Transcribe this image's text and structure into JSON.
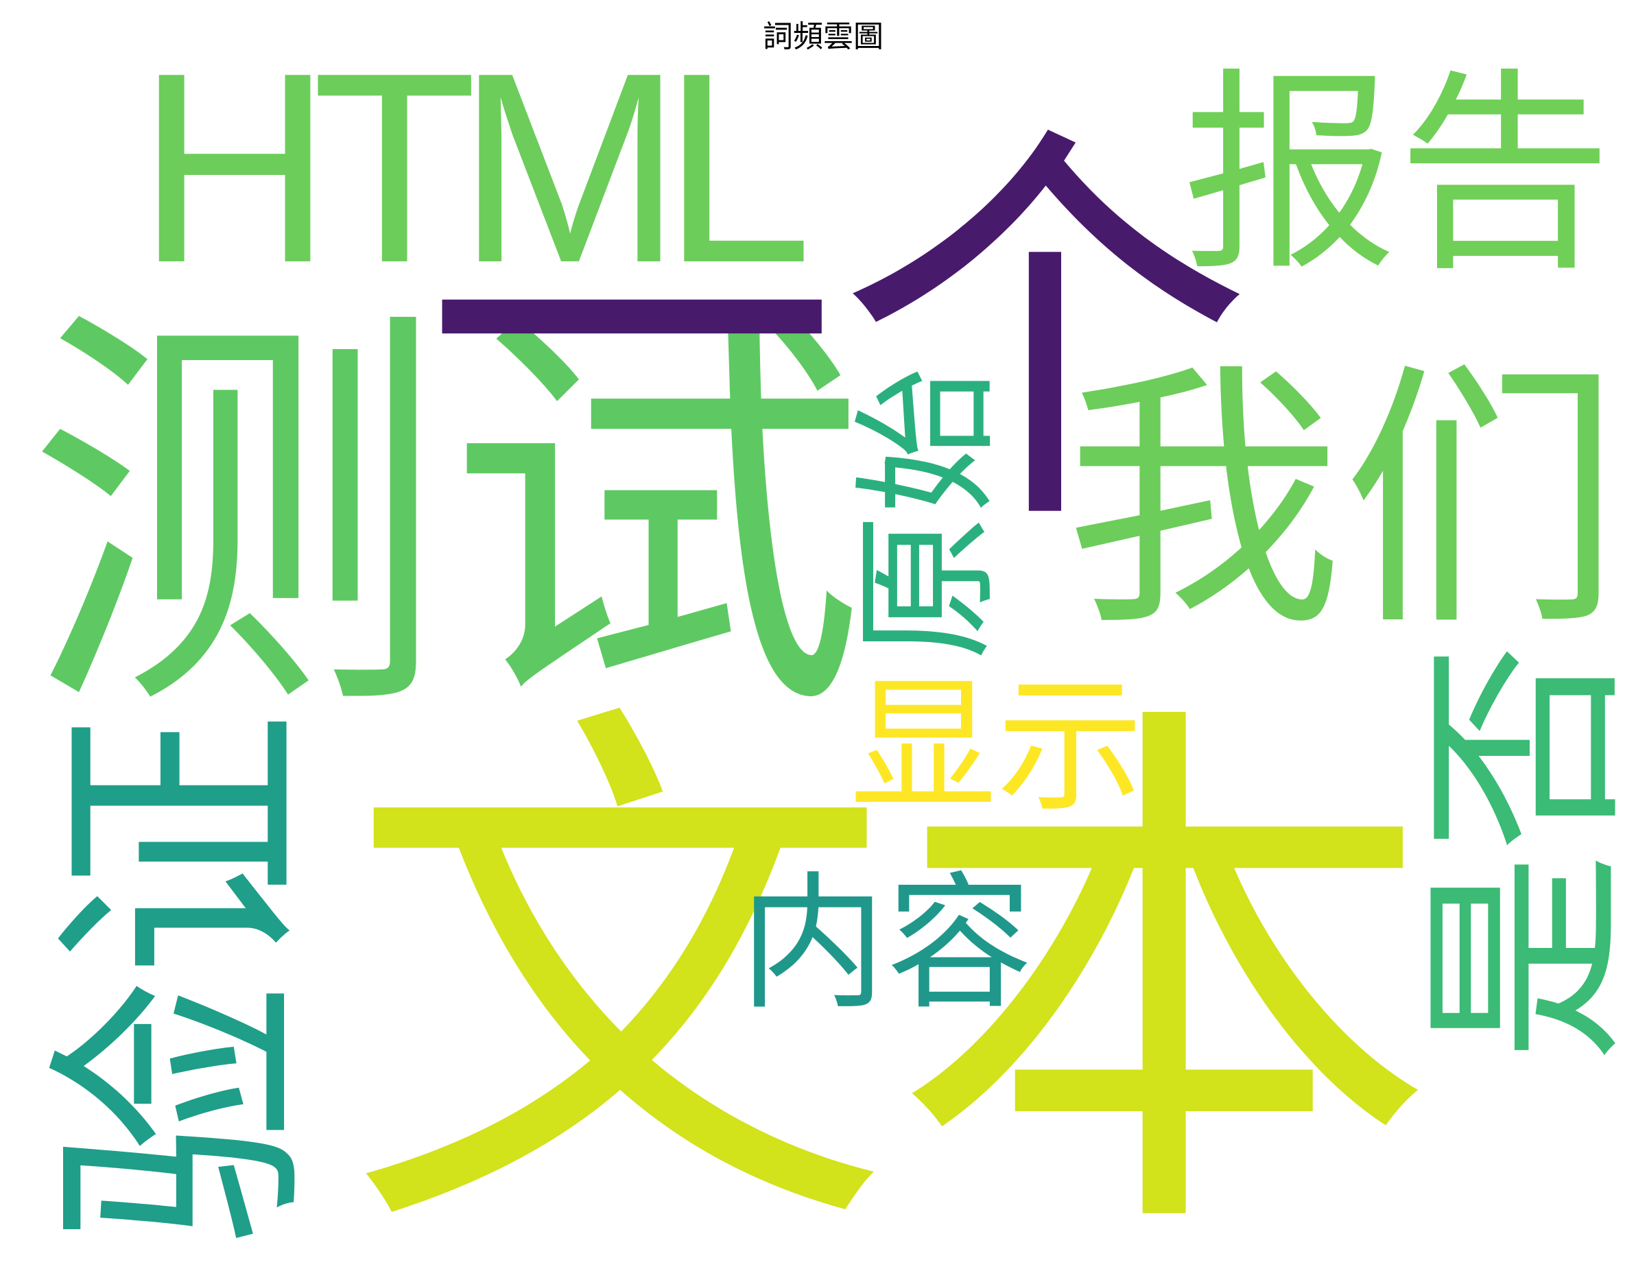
{
  "chart_data": {
    "type": "wordcloud",
    "title": "詞頻雲圖",
    "background": "#ffffff",
    "words": [
      {
        "text": "文本",
        "color": "#d2e21b",
        "orientation": "horizontal"
      },
      {
        "text": "测试",
        "color": "#5ec962",
        "orientation": "horizontal"
      },
      {
        "text": "一个",
        "color": "#481a6c",
        "orientation": "horizontal"
      },
      {
        "text": "HTML",
        "color": "#6ccd5a",
        "orientation": "horizontal"
      },
      {
        "text": "验证",
        "color": "#1f9e89",
        "orientation": "vertical"
      },
      {
        "text": "我们",
        "color": "#6ccd5a",
        "orientation": "horizontal"
      },
      {
        "text": "报告",
        "color": "#70cf57",
        "orientation": "horizontal"
      },
      {
        "text": "是否",
        "color": "#3bbb75",
        "orientation": "vertical"
      },
      {
        "text": "原始",
        "color": "#2ab07f",
        "orientation": "vertical"
      },
      {
        "text": "显示",
        "color": "#fde725",
        "orientation": "horizontal"
      },
      {
        "text": "内容",
        "color": "#1f988b",
        "orientation": "horizontal"
      }
    ]
  }
}
